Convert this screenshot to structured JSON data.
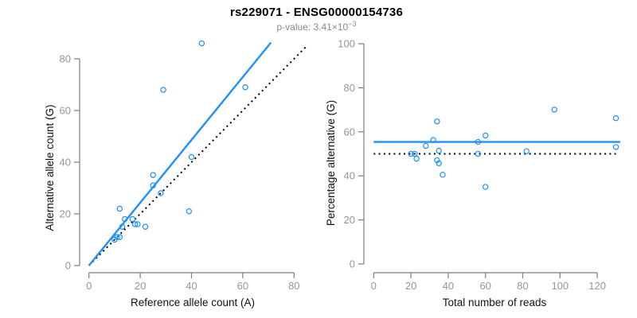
{
  "header": {
    "title": "rs229071 - ENSG00000154736",
    "subtitle_main": "p-value: 3.41×10",
    "subtitle_exponent": "−3"
  },
  "colors": {
    "point_blue": "#1E90FF",
    "fit_blue": "#1E90FF",
    "line_black": "#000000",
    "axis_gray": "#7d7d7d",
    "tick_label_gray": "#969696",
    "axis_title_black": "#111111",
    "subtitle_gray": "#8a8a8a"
  },
  "chart_data": [
    {
      "type": "scatter",
      "name": "allele-counts",
      "xlabel": "Reference allele count (A)",
      "ylabel": "Alternative allele count (G)",
      "xlim": [
        0,
        80
      ],
      "ylim": [
        0,
        80
      ],
      "xticks": [
        0,
        20,
        40,
        60,
        80
      ],
      "yticks": [
        0,
        20,
        40,
        60,
        80
      ],
      "grid": false,
      "legend": "none",
      "points": [
        [
          10,
          10
        ],
        [
          11,
          11
        ],
        [
          12,
          11
        ],
        [
          13,
          15
        ],
        [
          14,
          18
        ],
        [
          12,
          22
        ],
        [
          18,
          16
        ],
        [
          17,
          18
        ],
        [
          19,
          16
        ],
        [
          22,
          15
        ],
        [
          25,
          31
        ],
        [
          28,
          28
        ],
        [
          25,
          35
        ],
        [
          39,
          21
        ],
        [
          40,
          42
        ],
        [
          29,
          68
        ],
        [
          44,
          86
        ],
        [
          61,
          69
        ]
      ],
      "lines": [
        {
          "name": "identity-line",
          "style": "dotted",
          "color_key": "line_black",
          "from": [
            0,
            0
          ],
          "to": [
            85,
            85
          ]
        },
        {
          "name": "fit-line",
          "style": "solid",
          "color_key": "fit_blue",
          "from": [
            0,
            0
          ],
          "to": [
            71,
            86.3
          ]
        }
      ]
    },
    {
      "type": "scatter",
      "name": "percentage-vs-coverage",
      "xlabel": "Total number of reads",
      "ylabel": "Percentage alternative (G)",
      "xlim": [
        0,
        132
      ],
      "ylim": [
        0,
        100
      ],
      "xticks": [
        0,
        20,
        40,
        60,
        80,
        100,
        120
      ],
      "yticks": [
        0,
        20,
        40,
        60,
        80,
        100
      ],
      "grid": false,
      "legend": "none",
      "points": [
        [
          20,
          50
        ],
        [
          22,
          50
        ],
        [
          23,
          47.8
        ],
        [
          28,
          53.6
        ],
        [
          32,
          56.3
        ],
        [
          34,
          64.7
        ],
        [
          34,
          47.1
        ],
        [
          35,
          51.4
        ],
        [
          35,
          45.7
        ],
        [
          37,
          40.5
        ],
        [
          56,
          55.4
        ],
        [
          56,
          50
        ],
        [
          60,
          58.3
        ],
        [
          60,
          35
        ],
        [
          82,
          51.2
        ],
        [
          97,
          70.1
        ],
        [
          130,
          66.2
        ],
        [
          130,
          53.1
        ]
      ],
      "lines": [
        {
          "name": "null-line",
          "style": "dotted",
          "color_key": "line_black",
          "from": [
            0,
            50
          ],
          "to": [
            130,
            50
          ]
        },
        {
          "name": "mean-line",
          "style": "solid",
          "color_key": "fit_blue",
          "from": [
            0,
            55.4
          ],
          "to": [
            132.3,
            55.4
          ]
        }
      ]
    }
  ]
}
